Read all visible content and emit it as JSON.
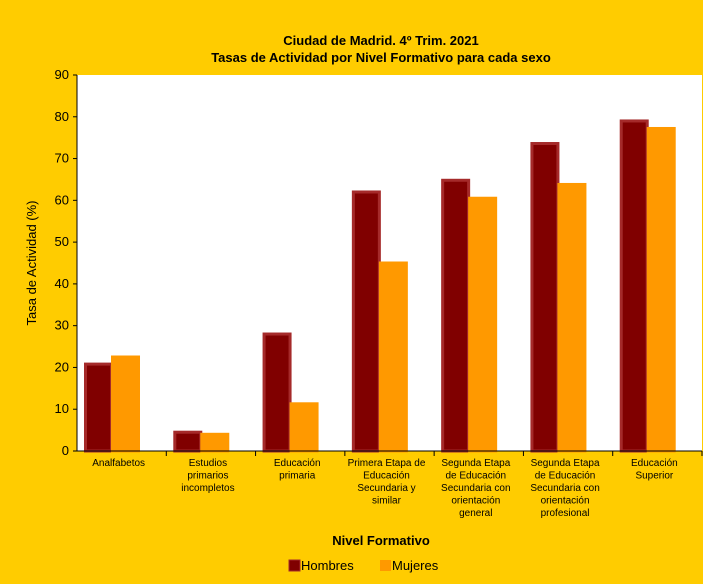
{
  "chart_data": {
    "type": "bar",
    "title": [
      "Ciudad de Madrid. 4º Trim. 2021",
      "Tasas de Actividad por Nivel Formativo para cada sexo"
    ],
    "xlabel": "Nivel Formativo",
    "ylabel": "Tasa de Actividad (%)",
    "ylim": [
      0,
      90
    ],
    "yticks": [
      0,
      10,
      20,
      30,
      40,
      50,
      60,
      70,
      80,
      90
    ],
    "grid": false,
    "legend_position": "bottom",
    "categories": [
      [
        "Analfabetos"
      ],
      [
        "Estudios",
        "primarios",
        "incompletos"
      ],
      [
        "Educación",
        "primaria"
      ],
      [
        "Primera Etapa de",
        "Educación",
        "Secundaria y",
        "similar"
      ],
      [
        "Segunda Etapa",
        "de Educación",
        "Secundaria con",
        "orientación",
        "general"
      ],
      [
        "Segunda Etapa",
        "de Educación",
        "Secundaria con",
        "orientación",
        "profesional"
      ],
      [
        "Educación",
        "Superior"
      ]
    ],
    "series": [
      {
        "name": "Hombres",
        "color": "#800000",
        "edge": "#a52a2a",
        "values": [
          20.8,
          4.5,
          28.0,
          62.0,
          64.8,
          73.6,
          79.0
        ]
      },
      {
        "name": "Mujeres",
        "color": "#ff9900",
        "edge": "#ff9900",
        "values": [
          22.5,
          4.0,
          11.3,
          45.0,
          60.5,
          63.8,
          77.2
        ]
      }
    ],
    "colors": {
      "background": "#ffcc00",
      "plot_area": "#ffffff"
    }
  }
}
